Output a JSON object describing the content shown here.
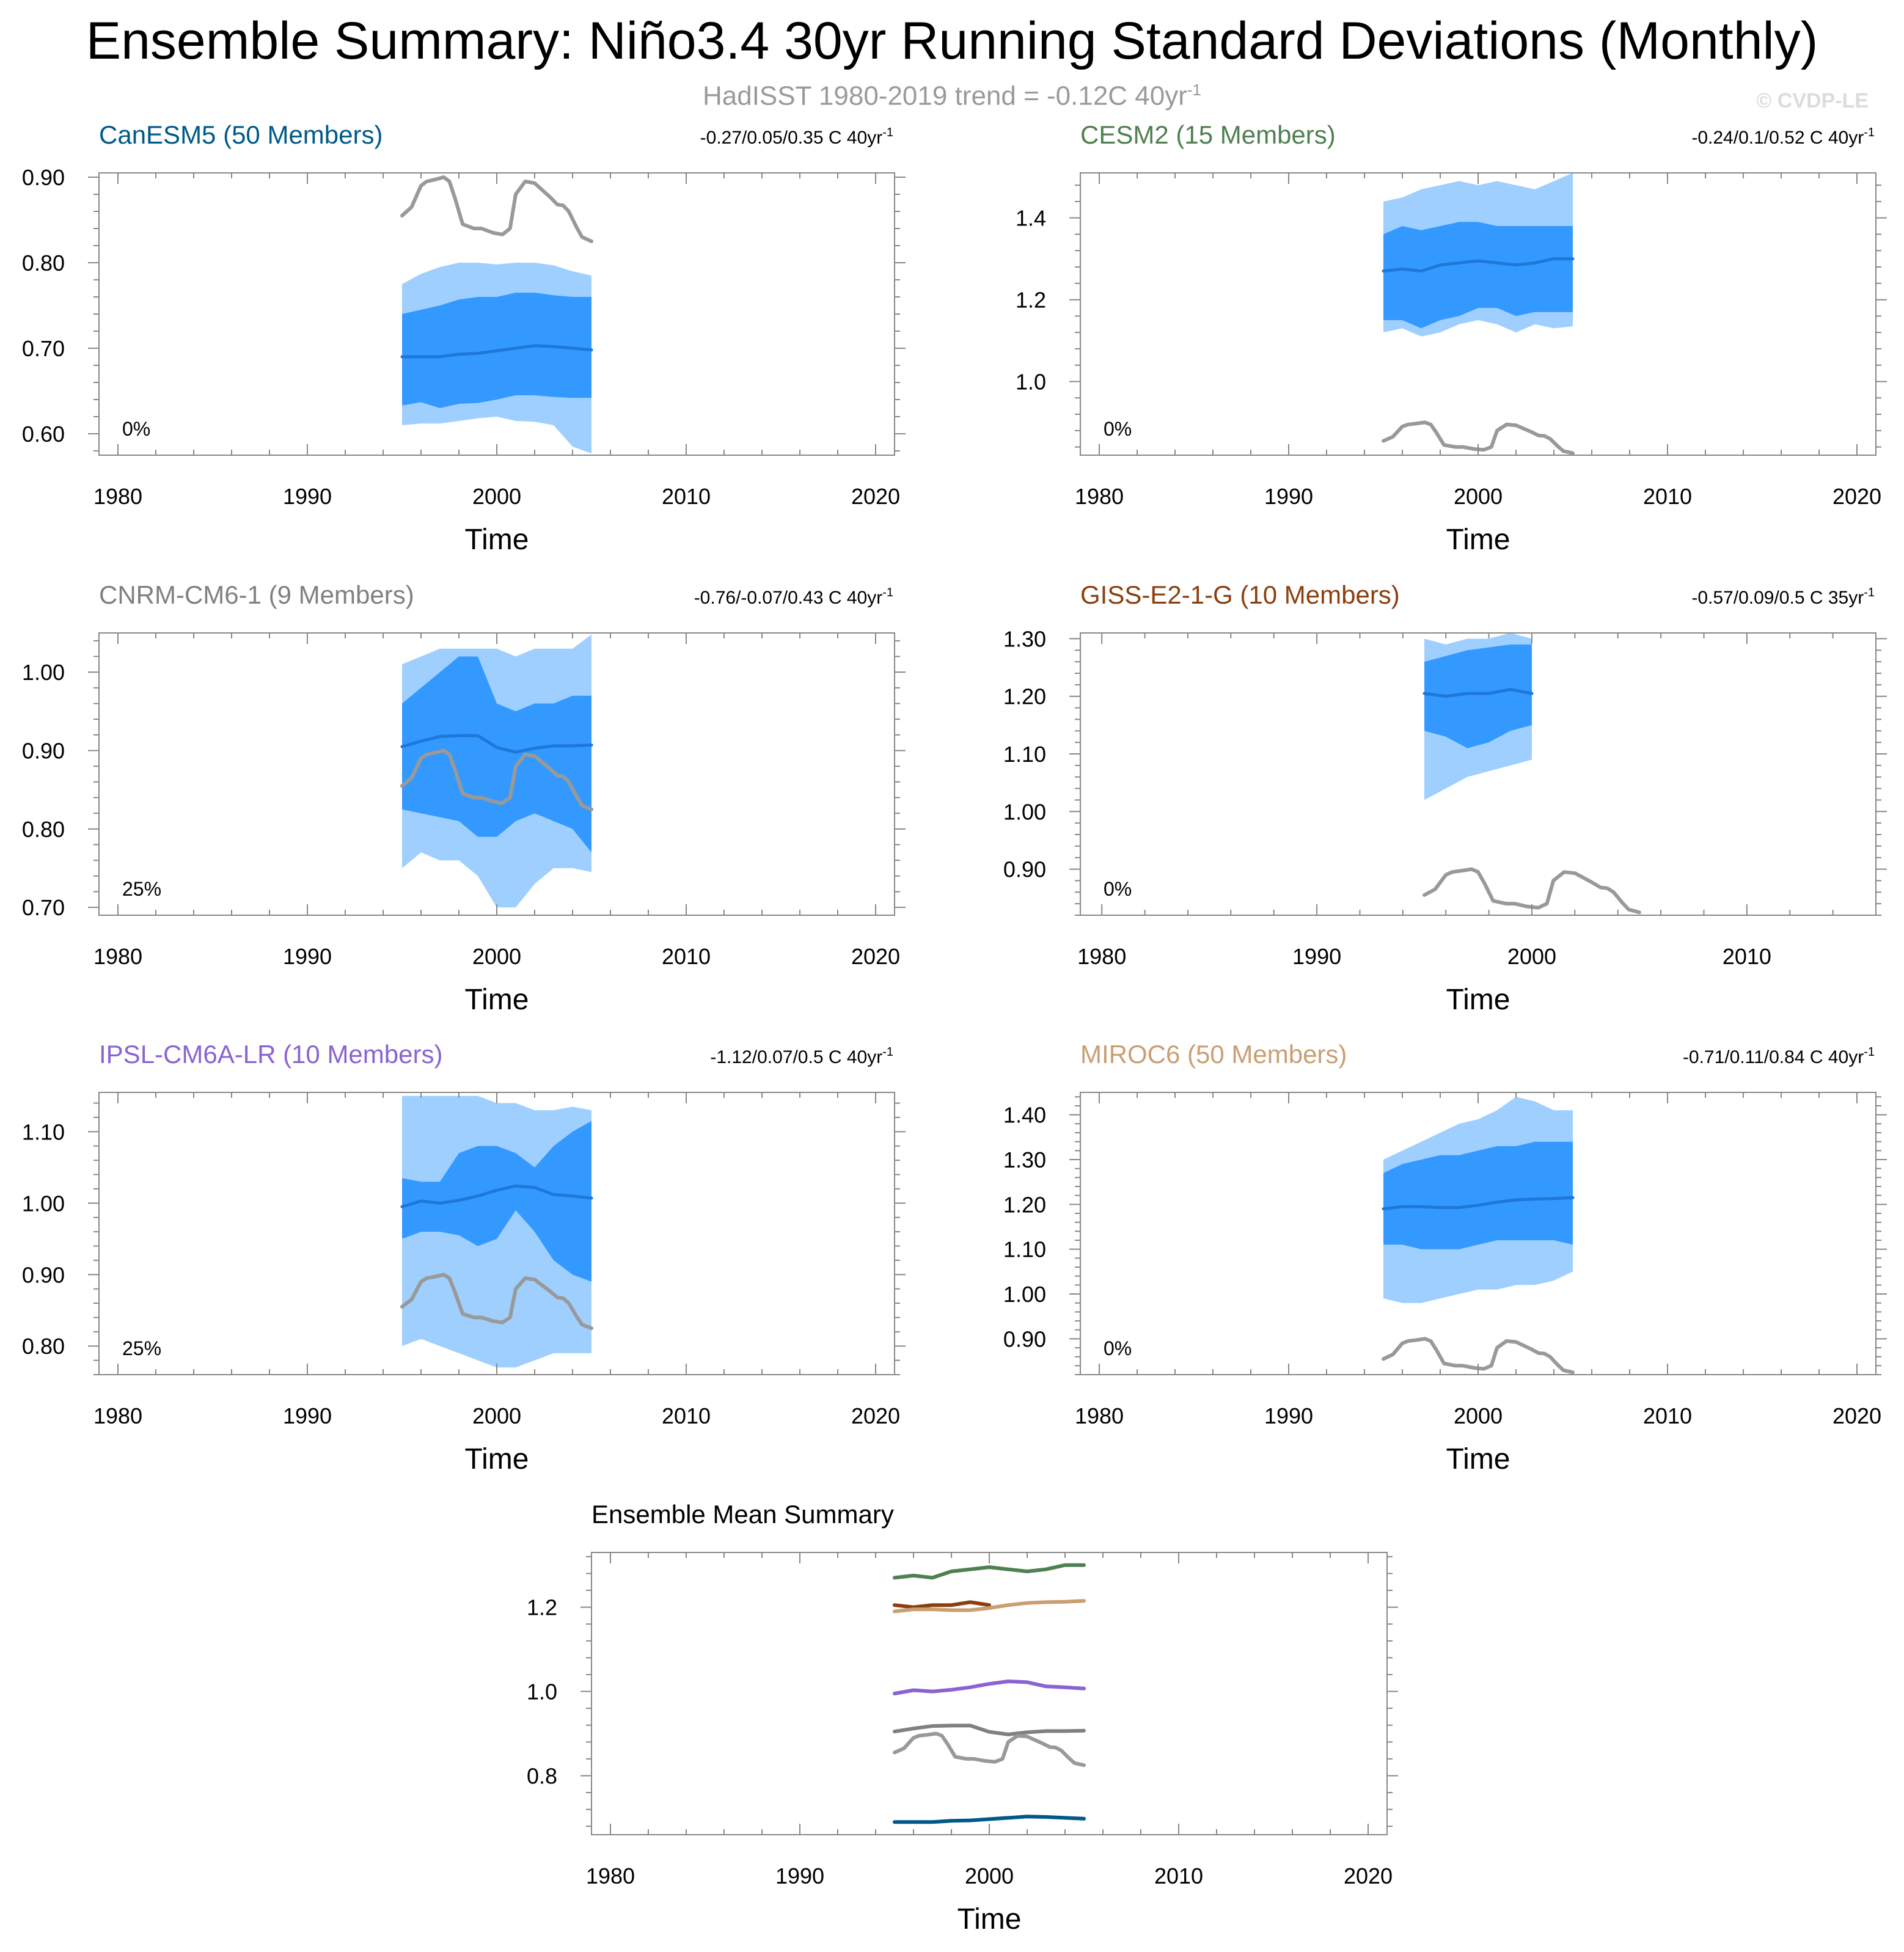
{
  "title": "Ensemble Summary: Niño3.4 30yr Running Standard Deviations (Monthly)",
  "subtitle": {
    "text": "HadISST 1980-2019 trend = -0.12C 40yr",
    "sup": "-1"
  },
  "credit": "© CVDP-LE",
  "colors": {
    "outer_band": "#9fcfff",
    "inner_band": "#3399ff",
    "ens_mean": "#1e78d8",
    "obs": "#999999"
  },
  "obs_series": {
    "name": "HadISST",
    "x": [
      1995.0,
      1995.5,
      1996.0,
      1996.3,
      1996.7,
      1997.2,
      1997.5,
      1997.8,
      1998.2,
      1998.8,
      1999.2,
      1999.8,
      2000.3,
      2000.7,
      2001.0,
      2001.5,
      2002.0,
      2002.4,
      2002.8,
      2003.2,
      2003.5,
      2003.8,
      2004.2,
      2004.5,
      2005.0
    ],
    "y": [
      0.855,
      0.865,
      0.89,
      0.895,
      0.897,
      0.9,
      0.895,
      0.875,
      0.845,
      0.84,
      0.84,
      0.835,
      0.833,
      0.84,
      0.88,
      0.895,
      0.893,
      0.885,
      0.877,
      0.868,
      0.867,
      0.86,
      0.842,
      0.83,
      0.825
    ]
  },
  "chart_data": [
    {
      "type": "area",
      "model": "CanESM5 (50 Members)",
      "color": "#005a88",
      "trend": {
        "text": "-0.27/0.05/0.35 C 40yr",
        "sup": "-1"
      },
      "pct": "0%",
      "xlabel": "Time",
      "xlim": [
        1979,
        2021
      ],
      "xticks": [
        1980,
        1990,
        2000,
        2010,
        2020
      ],
      "ylim": [
        0.575,
        0.905
      ],
      "yticks": [
        0.6,
        0.7,
        0.8,
        0.9
      ],
      "ytick_labels": [
        "0.60",
        "0.70",
        "0.80",
        "0.90"
      ],
      "x": [
        1995,
        1996,
        1997,
        1998,
        1999,
        2000,
        2001,
        2002,
        2003,
        2004,
        2005
      ],
      "mean": [
        0.69,
        0.69,
        0.69,
        0.693,
        0.694,
        0.697,
        0.7,
        0.703,
        0.702,
        0.7,
        0.698
      ],
      "p10": [
        0.633,
        0.637,
        0.63,
        0.635,
        0.636,
        0.64,
        0.645,
        0.645,
        0.643,
        0.642,
        0.642
      ],
      "p90": [
        0.74,
        0.745,
        0.75,
        0.757,
        0.76,
        0.76,
        0.765,
        0.765,
        0.762,
        0.76,
        0.76
      ],
      "min": [
        0.61,
        0.612,
        0.612,
        0.615,
        0.618,
        0.62,
        0.615,
        0.614,
        0.61,
        0.585,
        0.577
      ],
      "max": [
        0.775,
        0.787,
        0.795,
        0.8,
        0.8,
        0.798,
        0.8,
        0.8,
        0.797,
        0.79,
        0.785
      ]
    },
    {
      "type": "area",
      "model": "CESM2 (15 Members)",
      "color": "#4f8050",
      "trend": {
        "text": "-0.24/0.1/0.52 C 40yr",
        "sup": "-1"
      },
      "pct": "0%",
      "xlabel": "Time",
      "xlim": [
        1979,
        2021
      ],
      "xticks": [
        1980,
        1990,
        2000,
        2010,
        2020
      ],
      "ylim": [
        0.82,
        1.51
      ],
      "yticks": [
        1.0,
        1.2,
        1.4
      ],
      "ytick_labels": [
        "1.0",
        "1.2",
        "1.4"
      ],
      "x": [
        1995,
        1996,
        1997,
        1998,
        1999,
        2000,
        2001,
        2002,
        2003,
        2004,
        2005
      ],
      "mean": [
        1.27,
        1.275,
        1.27,
        1.285,
        1.29,
        1.295,
        1.29,
        1.285,
        1.29,
        1.3,
        1.3
      ],
      "p10": [
        1.15,
        1.15,
        1.13,
        1.15,
        1.16,
        1.18,
        1.18,
        1.16,
        1.17,
        1.17,
        1.17
      ],
      "p90": [
        1.36,
        1.38,
        1.37,
        1.38,
        1.39,
        1.39,
        1.38,
        1.38,
        1.38,
        1.38,
        1.38
      ],
      "min": [
        1.12,
        1.13,
        1.11,
        1.12,
        1.14,
        1.15,
        1.14,
        1.12,
        1.14,
        1.13,
        1.135
      ],
      "max": [
        1.44,
        1.45,
        1.47,
        1.48,
        1.49,
        1.48,
        1.49,
        1.48,
        1.47,
        1.49,
        1.51
      ]
    },
    {
      "type": "area",
      "model": "CNRM-CM6-1 (9 Members)",
      "color": "#808080",
      "trend": {
        "text": "-0.76/-0.07/0.43 C 40yr",
        "sup": "-1"
      },
      "pct": "25%",
      "xlabel": "Time",
      "xlim": [
        1979,
        2021
      ],
      "xticks": [
        1980,
        1990,
        2000,
        2010,
        2020
      ],
      "ylim": [
        0.69,
        1.05
      ],
      "yticks": [
        0.7,
        0.8,
        0.9,
        1.0
      ],
      "ytick_labels": [
        "0.70",
        "0.80",
        "0.90",
        "1.00"
      ],
      "x": [
        1995,
        1996,
        1997,
        1998,
        1999,
        2000,
        2001,
        2002,
        2003,
        2004,
        2005
      ],
      "mean": [
        0.905,
        0.912,
        0.918,
        0.919,
        0.919,
        0.904,
        0.898,
        0.903,
        0.906,
        0.906,
        0.907
      ],
      "p10": [
        0.825,
        0.82,
        0.815,
        0.81,
        0.79,
        0.79,
        0.81,
        0.82,
        0.81,
        0.8,
        0.77
      ],
      "p90": [
        0.96,
        0.98,
        1.0,
        1.02,
        1.02,
        0.96,
        0.95,
        0.96,
        0.96,
        0.97,
        0.97
      ],
      "min": [
        0.75,
        0.77,
        0.76,
        0.76,
        0.74,
        0.7,
        0.7,
        0.73,
        0.75,
        0.75,
        0.745
      ],
      "max": [
        1.01,
        1.02,
        1.03,
        1.03,
        1.03,
        1.03,
        1.02,
        1.03,
        1.03,
        1.03,
        1.048
      ]
    },
    {
      "type": "area",
      "model": "GISS-E2-1-G (10 Members)",
      "color": "#8b3f0f",
      "trend": {
        "text": "-0.57/0.09/0.5 C 35yr",
        "sup": "-1"
      },
      "pct": "0%",
      "xlabel": "Time",
      "xlim": [
        1979,
        2016
      ],
      "xticks": [
        1980,
        1990,
        2000,
        2010
      ],
      "ylim": [
        0.82,
        1.31
      ],
      "yticks": [
        0.9,
        1.0,
        1.1,
        1.2,
        1.3
      ],
      "ytick_labels": [
        "0.90",
        "1.00",
        "1.10",
        "1.20",
        "1.30"
      ],
      "x": [
        1995,
        1996,
        1997,
        1998,
        1999,
        2000
      ],
      "mean": [
        1.205,
        1.2,
        1.205,
        1.205,
        1.212,
        1.205
      ],
      "p10": [
        1.14,
        1.13,
        1.11,
        1.12,
        1.14,
        1.15
      ],
      "p90": [
        1.26,
        1.27,
        1.28,
        1.285,
        1.29,
        1.29
      ],
      "min": [
        1.02,
        1.04,
        1.06,
        1.07,
        1.08,
        1.09
      ],
      "max": [
        1.3,
        1.29,
        1.3,
        1.3,
        1.31,
        1.3
      ]
    },
    {
      "type": "area",
      "model": "IPSL-CM6A-LR (10 Members)",
      "color": "#8a63d2",
      "trend": {
        "text": "-1.12/0.07/0.5 C 40yr",
        "sup": "-1"
      },
      "pct": "25%",
      "xlabel": "Time",
      "xlim": [
        1979,
        2021
      ],
      "xticks": [
        1980,
        1990,
        2000,
        2010,
        2020
      ],
      "ylim": [
        0.76,
        1.155
      ],
      "yticks": [
        0.8,
        0.9,
        1.0,
        1.1
      ],
      "ytick_labels": [
        "0.80",
        "0.90",
        "1.00",
        "1.10"
      ],
      "x": [
        1995,
        1996,
        1997,
        1998,
        1999,
        2000,
        2001,
        2002,
        2003,
        2004,
        2005
      ],
      "mean": [
        0.995,
        1.003,
        1.0,
        1.004,
        1.01,
        1.018,
        1.024,
        1.022,
        1.012,
        1.01,
        1.007
      ],
      "p10": [
        0.95,
        0.96,
        0.96,
        0.955,
        0.94,
        0.95,
        0.99,
        0.96,
        0.92,
        0.9,
        0.89
      ],
      "p90": [
        1.035,
        1.03,
        1.03,
        1.07,
        1.08,
        1.08,
        1.07,
        1.05,
        1.08,
        1.1,
        1.115
      ],
      "min": [
        0.8,
        0.81,
        0.8,
        0.79,
        0.78,
        0.77,
        0.77,
        0.78,
        0.79,
        0.79,
        0.79
      ],
      "max": [
        1.15,
        1.15,
        1.15,
        1.15,
        1.15,
        1.14,
        1.14,
        1.13,
        1.13,
        1.135,
        1.13
      ]
    },
    {
      "type": "area",
      "model": "MIROC6 (50 Members)",
      "color": "#c99f72",
      "trend": {
        "text": "-0.71/0.11/0.84 C 40yr",
        "sup": "-1"
      },
      "pct": "0%",
      "xlabel": "Time",
      "xlim": [
        1979,
        2021
      ],
      "xticks": [
        1980,
        1990,
        2000,
        2010,
        2020
      ],
      "ylim": [
        0.82,
        1.45
      ],
      "yticks": [
        0.9,
        1.0,
        1.1,
        1.2,
        1.3,
        1.4
      ],
      "ytick_labels": [
        "0.90",
        "1.00",
        "1.10",
        "1.20",
        "1.30",
        "1.40"
      ],
      "x": [
        1995,
        1996,
        1997,
        1998,
        1999,
        2000,
        2001,
        2002,
        2003,
        2004,
        2005
      ],
      "mean": [
        1.19,
        1.195,
        1.195,
        1.193,
        1.193,
        1.198,
        1.205,
        1.21,
        1.212,
        1.213,
        1.215
      ],
      "p10": [
        1.11,
        1.11,
        1.1,
        1.1,
        1.1,
        1.11,
        1.12,
        1.12,
        1.12,
        1.12,
        1.11
      ],
      "p90": [
        1.27,
        1.29,
        1.3,
        1.31,
        1.31,
        1.32,
        1.33,
        1.33,
        1.34,
        1.34,
        1.34
      ],
      "min": [
        0.99,
        0.98,
        0.98,
        0.99,
        1.0,
        1.01,
        1.01,
        1.02,
        1.02,
        1.03,
        1.05
      ],
      "max": [
        1.3,
        1.32,
        1.34,
        1.36,
        1.38,
        1.39,
        1.41,
        1.44,
        1.43,
        1.41,
        1.41
      ]
    },
    {
      "type": "line",
      "title": "Ensemble Mean Summary",
      "xlabel": "Time",
      "xlim": [
        1979,
        2021
      ],
      "xticks": [
        1980,
        1990,
        2000,
        2010,
        2020
      ],
      "ylim": [
        0.66,
        1.33
      ],
      "yticks": [
        0.8,
        1.0,
        1.2
      ],
      "ytick_labels": [
        "0.8",
        "1.0",
        "1.2"
      ],
      "series": [
        {
          "name": "CanESM5",
          "color": "#005a88",
          "x": [
            1995,
            1996,
            1997,
            1998,
            1999,
            2000,
            2001,
            2002,
            2003,
            2004,
            2005
          ],
          "values": [
            0.69,
            0.69,
            0.69,
            0.693,
            0.694,
            0.697,
            0.7,
            0.703,
            0.702,
            0.7,
            0.698
          ]
        },
        {
          "name": "CESM2",
          "color": "#4f8050",
          "x": [
            1995,
            1996,
            1997,
            1998,
            1999,
            2000,
            2001,
            2002,
            2003,
            2004,
            2005
          ],
          "values": [
            1.27,
            1.275,
            1.27,
            1.285,
            1.29,
            1.295,
            1.29,
            1.285,
            1.29,
            1.3,
            1.3
          ]
        },
        {
          "name": "CNRM-CM6-1",
          "color": "#808080",
          "x": [
            1995,
            1996,
            1997,
            1998,
            1999,
            2000,
            2001,
            2002,
            2003,
            2004,
            2005
          ],
          "values": [
            0.905,
            0.912,
            0.918,
            0.919,
            0.919,
            0.904,
            0.898,
            0.903,
            0.906,
            0.906,
            0.907
          ]
        },
        {
          "name": "GISS-E2-1-G",
          "color": "#8b3f0f",
          "x": [
            1995,
            1996,
            1997,
            1998,
            1999,
            2000
          ],
          "values": [
            1.205,
            1.2,
            1.205,
            1.205,
            1.212,
            1.205
          ]
        },
        {
          "name": "IPSL-CM6A-LR",
          "color": "#8a63d2",
          "x": [
            1995,
            1996,
            1997,
            1998,
            1999,
            2000,
            2001,
            2002,
            2003,
            2004,
            2005
          ],
          "values": [
            0.995,
            1.003,
            1.0,
            1.004,
            1.01,
            1.018,
            1.024,
            1.022,
            1.012,
            1.01,
            1.007
          ]
        },
        {
          "name": "MIROC6",
          "color": "#c99f72",
          "x": [
            1995,
            1996,
            1997,
            1998,
            1999,
            2000,
            2001,
            2002,
            2003,
            2004,
            2005
          ],
          "values": [
            1.19,
            1.195,
            1.195,
            1.193,
            1.193,
            1.198,
            1.205,
            1.21,
            1.212,
            1.213,
            1.215
          ]
        }
      ]
    }
  ]
}
